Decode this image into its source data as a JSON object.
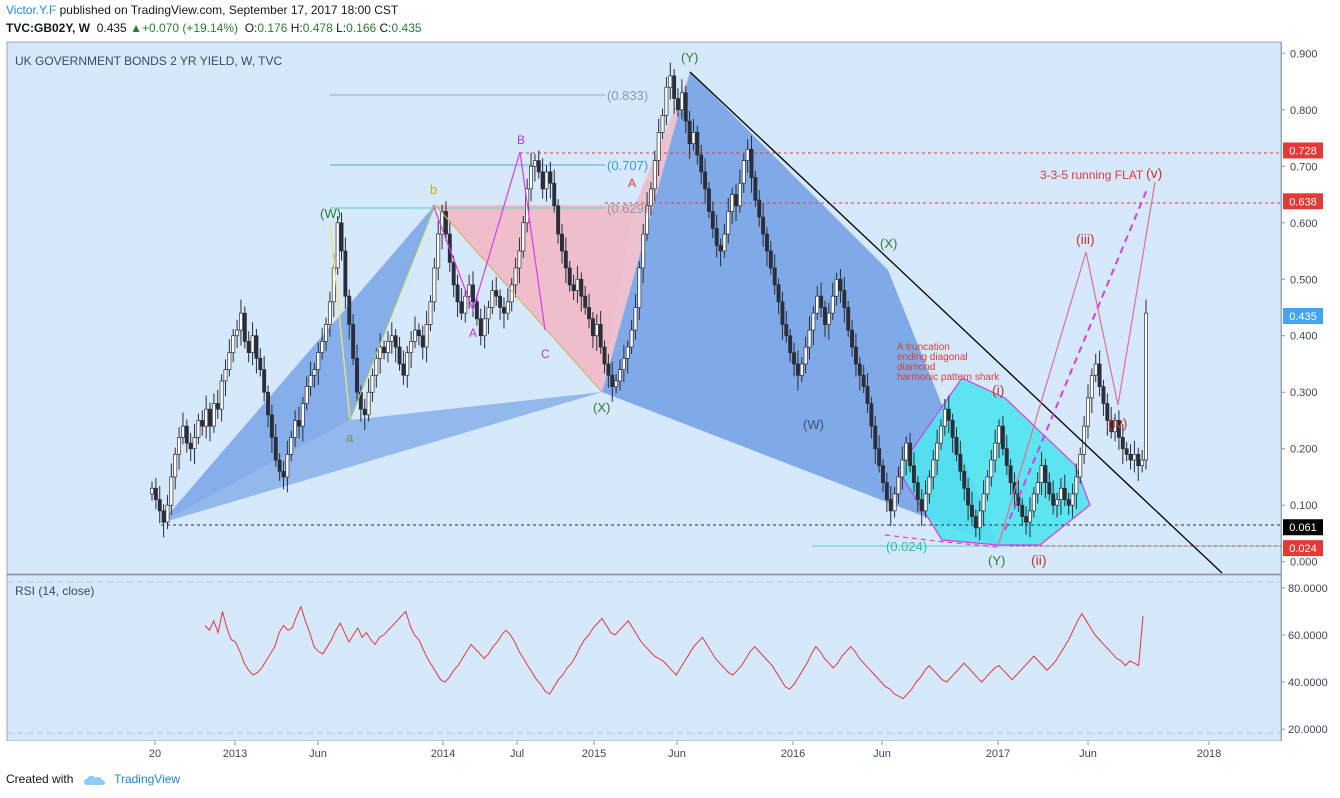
{
  "header": {
    "author": "Victor.Y.F",
    "published_text": "published on TradingView.com, September 17, 2017 18:00 CST",
    "symbol": "TVC:GB02Y, W",
    "last": "0.435",
    "change": "+0.070 (+19.14%)",
    "o_label": "O:",
    "o_value": "0.176",
    "h_label": "H:",
    "h_value": "0.478",
    "l_label": "L:",
    "l_value": "0.166",
    "c_label": "C:",
    "c_value": "0.435"
  },
  "footer": {
    "created_with": "Created with",
    "brand": "TradingView"
  },
  "colors": {
    "background": "#d6e8fb",
    "bull": "#ffffff",
    "bear": "#2a2e39",
    "rsi": "#e53935",
    "blue_pattern": "#5b8fe0",
    "pink_pattern": "#f4b6c2",
    "cyan_pattern": "#4fe3f0",
    "magenta": "#d63ce8"
  },
  "chart_data": [
    {
      "type": "candlestick",
      "title": "UK GOVERNMENT BONDS 2 YR YIELD, W, TVC",
      "ylim": [
        -0.02,
        0.92
      ],
      "y_ticks": [
        "0.900",
        "0.800",
        "0.700",
        "0.600",
        "0.500",
        "0.400",
        "0.300",
        "0.200",
        "0.100",
        "0.000"
      ],
      "x_ticks": [
        "20",
        "2013",
        "Jun",
        "2014",
        "Jul",
        "2015",
        "Jun",
        "2016",
        "Jun",
        "2017",
        "Jun",
        "2018"
      ],
      "price_tags": [
        {
          "value": "0.728",
          "color": "#e53935"
        },
        {
          "value": "0.638",
          "color": "#e53935"
        },
        {
          "value": "0.435",
          "color": "#42a5f5"
        },
        {
          "value": "0.061",
          "color": "#000000"
        },
        {
          "value": "0.024",
          "color": "#e53935"
        }
      ],
      "series": [
        {
          "name": "Weekly yield",
          "values": [
            0.13,
            0.11,
            0.09,
            0.07,
            0.1,
            0.15,
            0.19,
            0.22,
            0.24,
            0.21,
            0.2,
            0.22,
            0.25,
            0.24,
            0.27,
            0.24,
            0.28,
            0.27,
            0.32,
            0.34,
            0.37,
            0.4,
            0.41,
            0.44,
            0.39,
            0.37,
            0.4,
            0.36,
            0.34,
            0.3,
            0.26,
            0.22,
            0.18,
            0.16,
            0.15,
            0.19,
            0.22,
            0.25,
            0.24,
            0.28,
            0.31,
            0.33,
            0.34,
            0.37,
            0.39,
            0.42,
            0.46,
            0.52,
            0.6,
            0.55,
            0.47,
            0.42,
            0.36,
            0.3,
            0.27,
            0.26,
            0.3,
            0.33,
            0.36,
            0.38,
            0.37,
            0.39,
            0.4,
            0.38,
            0.35,
            0.33,
            0.37,
            0.39,
            0.41,
            0.4,
            0.38,
            0.42,
            0.46,
            0.52,
            0.58,
            0.62,
            0.58,
            0.53,
            0.49,
            0.46,
            0.44,
            0.47,
            0.49,
            0.46,
            0.43,
            0.4,
            0.43,
            0.45,
            0.48,
            0.47,
            0.45,
            0.44,
            0.46,
            0.49,
            0.52,
            0.55,
            0.6,
            0.66,
            0.7,
            0.71,
            0.69,
            0.66,
            0.69,
            0.67,
            0.63,
            0.58,
            0.55,
            0.52,
            0.49,
            0.48,
            0.5,
            0.47,
            0.45,
            0.43,
            0.4,
            0.42,
            0.38,
            0.35,
            0.33,
            0.31,
            0.32,
            0.34,
            0.36,
            0.38,
            0.41,
            0.45,
            0.52,
            0.58,
            0.63,
            0.66,
            0.71,
            0.76,
            0.79,
            0.84,
            0.86,
            0.82,
            0.8,
            0.83,
            0.78,
            0.74,
            0.76,
            0.72,
            0.69,
            0.66,
            0.62,
            0.59,
            0.56,
            0.55,
            0.58,
            0.62,
            0.65,
            0.63,
            0.67,
            0.71,
            0.73,
            0.68,
            0.64,
            0.61,
            0.58,
            0.55,
            0.52,
            0.49,
            0.46,
            0.42,
            0.4,
            0.37,
            0.35,
            0.33,
            0.35,
            0.38,
            0.41,
            0.44,
            0.47,
            0.45,
            0.42,
            0.44,
            0.47,
            0.5,
            0.48,
            0.45,
            0.41,
            0.38,
            0.35,
            0.33,
            0.31,
            0.28,
            0.24,
            0.2,
            0.17,
            0.14,
            0.11,
            0.09,
            0.12,
            0.15,
            0.18,
            0.21,
            0.17,
            0.14,
            0.11,
            0.09,
            0.12,
            0.15,
            0.18,
            0.21,
            0.24,
            0.27,
            0.25,
            0.22,
            0.19,
            0.16,
            0.13,
            0.1,
            0.08,
            0.06,
            0.09,
            0.12,
            0.15,
            0.18,
            0.21,
            0.24,
            0.2,
            0.17,
            0.14,
            0.12,
            0.1,
            0.08,
            0.07,
            0.09,
            0.12,
            0.14,
            0.17,
            0.14,
            0.12,
            0.1,
            0.11,
            0.13,
            0.11,
            0.1,
            0.12,
            0.15,
            0.19,
            0.24,
            0.29,
            0.33,
            0.35,
            0.31,
            0.28,
            0.25,
            0.23,
            0.25,
            0.22,
            0.2,
            0.19,
            0.18,
            0.19,
            0.17,
            0.18,
            0.44
          ]
        }
      ]
    },
    {
      "type": "line",
      "title": "RSI (14, close)",
      "ylim": [
        15,
        85
      ],
      "y_ticks": [
        "80.0000",
        "60.0000",
        "40.0000",
        "20.0000"
      ],
      "series": [
        {
          "name": "RSI",
          "values": [
            64,
            62,
            66,
            61,
            70,
            63,
            58,
            57,
            53,
            48,
            45,
            43,
            44,
            46,
            49,
            52,
            55,
            61,
            64,
            62,
            63,
            68,
            72,
            66,
            61,
            55,
            53,
            52,
            55,
            58,
            62,
            65,
            61,
            57,
            60,
            63,
            59,
            61,
            58,
            56,
            59,
            60,
            62,
            64,
            66,
            68,
            70,
            64,
            60,
            58,
            54,
            50,
            47,
            44,
            41,
            40,
            42,
            45,
            47,
            50,
            53,
            56,
            54,
            52,
            50,
            52,
            55,
            57,
            60,
            62,
            60,
            57,
            53,
            50,
            47,
            44,
            41,
            39,
            36,
            35,
            38,
            41,
            43,
            46,
            48,
            51,
            55,
            58,
            60,
            63,
            65,
            67,
            64,
            61,
            60,
            62,
            64,
            66,
            63,
            60,
            57,
            55,
            53,
            51,
            50,
            49,
            47,
            45,
            43,
            46,
            49,
            52,
            55,
            57,
            59,
            56,
            53,
            50,
            48,
            46,
            44,
            43,
            45,
            47,
            50,
            53,
            55,
            53,
            51,
            49,
            47,
            44,
            41,
            38,
            37,
            39,
            42,
            45,
            48,
            52,
            55,
            53,
            50,
            48,
            46,
            48,
            51,
            53,
            55,
            53,
            50,
            48,
            46,
            44,
            42,
            40,
            38,
            37,
            35,
            34,
            33,
            35,
            37,
            40,
            42,
            45,
            47,
            45,
            43,
            41,
            40,
            42,
            44,
            46,
            48,
            46,
            44,
            42,
            40,
            42,
            44,
            46,
            47,
            45,
            43,
            41,
            43,
            45,
            47,
            49,
            51,
            49,
            47,
            45,
            47,
            49,
            52,
            55,
            58,
            62,
            66,
            69,
            66,
            63,
            60,
            58,
            56,
            54,
            52,
            50,
            49,
            47,
            49,
            48,
            47,
            68
          ]
        }
      ]
    }
  ],
  "annotations": {
    "waves": {
      "W1": "(W)",
      "b": "b",
      "a": "a",
      "A1": "A",
      "B1": "B",
      "C1": "C",
      "A2": "A",
      "Y1": "(Y)",
      "X1": "(X)",
      "X2": "(X)",
      "W2": "(W)",
      "Y2": "(Y)",
      "i": "(i)",
      "ii": "(ii)",
      "iii": "(iii)",
      "iv": "(iv)",
      "v": "(v)"
    },
    "fibs": {
      "f833": "(0.833)",
      "f707": "(0.707)",
      "f629": "(0.629)",
      "f024": "(0.024)"
    },
    "note": [
      "A truncation",
      "ending diagonal",
      "diamond",
      "harmonic pattern shark"
    ],
    "running_flat": "3-3-5 running FLAT"
  }
}
